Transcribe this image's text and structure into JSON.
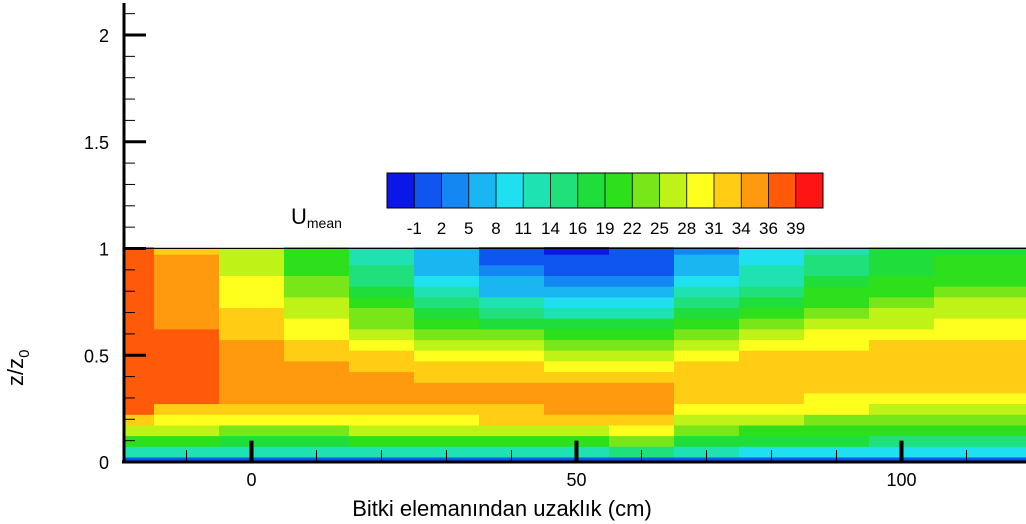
{
  "chart_data": {
    "type": "contour",
    "xlabel": "Bitki elemanından uzaklık (cm)",
    "ylabel": {
      "base": "z/z",
      "sub": "0"
    },
    "xlim": [
      -20,
      120
    ],
    "ylim": [
      0,
      2.15
    ],
    "x_ticks": [
      0,
      50,
      100
    ],
    "x_tick_labels": [
      "0",
      "50",
      "100"
    ],
    "y_ticks": [
      0,
      0.5,
      1,
      1.5,
      2
    ],
    "y_tick_labels": [
      "0",
      "0.5",
      "1",
      "1.5",
      "2"
    ],
    "legend": {
      "title": {
        "base": "U",
        "sub": "mean"
      },
      "placement": "above plot, centered",
      "levels": [
        "-1",
        "2",
        "5",
        "8",
        "11",
        "14",
        "16",
        "19",
        "22",
        "25",
        "28",
        "31",
        "34",
        "36",
        "39"
      ],
      "colors": [
        "#0a17e6",
        "#0f55f0",
        "#1487f3",
        "#19b6f2",
        "#1fe0ee",
        "#1fe2b2",
        "#1fe07a",
        "#1fde3c",
        "#2ee01b",
        "#79e61a",
        "#bff216",
        "#ffff1e",
        "#ffcd14",
        "#ff9a0e",
        "#ff5a0a",
        "#ff1414"
      ]
    },
    "data_region": {
      "x": [
        -20,
        120
      ],
      "z": [
        0,
        1
      ]
    },
    "grid": false,
    "markers": [
      {
        "x": 0,
        "z": 0.1
      },
      {
        "x": 50,
        "z": 0.1
      },
      {
        "x": 100,
        "z": 0.1
      }
    ],
    "field_grid": {
      "x": [
        -20,
        -10,
        0,
        10,
        20,
        30,
        40,
        50,
        60,
        70,
        80,
        90,
        100,
        110,
        120
      ],
      "z": [
        0,
        0.05,
        0.1,
        0.15,
        0.2,
        0.25,
        0.3,
        0.35,
        0.4,
        0.45,
        0.5,
        0.55,
        0.6,
        0.65,
        0.7,
        0.75,
        0.8,
        0.85,
        0.9,
        0.95,
        1.0
      ],
      "u_peak": [
        39,
        37,
        36,
        35,
        35,
        35,
        35,
        35,
        36,
        33,
        33,
        33,
        33,
        33,
        33
      ],
      "u_peak_z": [
        0.35,
        0.36,
        0.37,
        0.36,
        0.34,
        0.32,
        0.31,
        0.29,
        0.28,
        0.35,
        0.39,
        0.42,
        0.44,
        0.45,
        0.47
      ],
      "u_top": [
        39,
        34,
        27,
        20,
        13,
        6,
        1,
        -1,
        0,
        5,
        10,
        14,
        17,
        19,
        19
      ]
    }
  }
}
